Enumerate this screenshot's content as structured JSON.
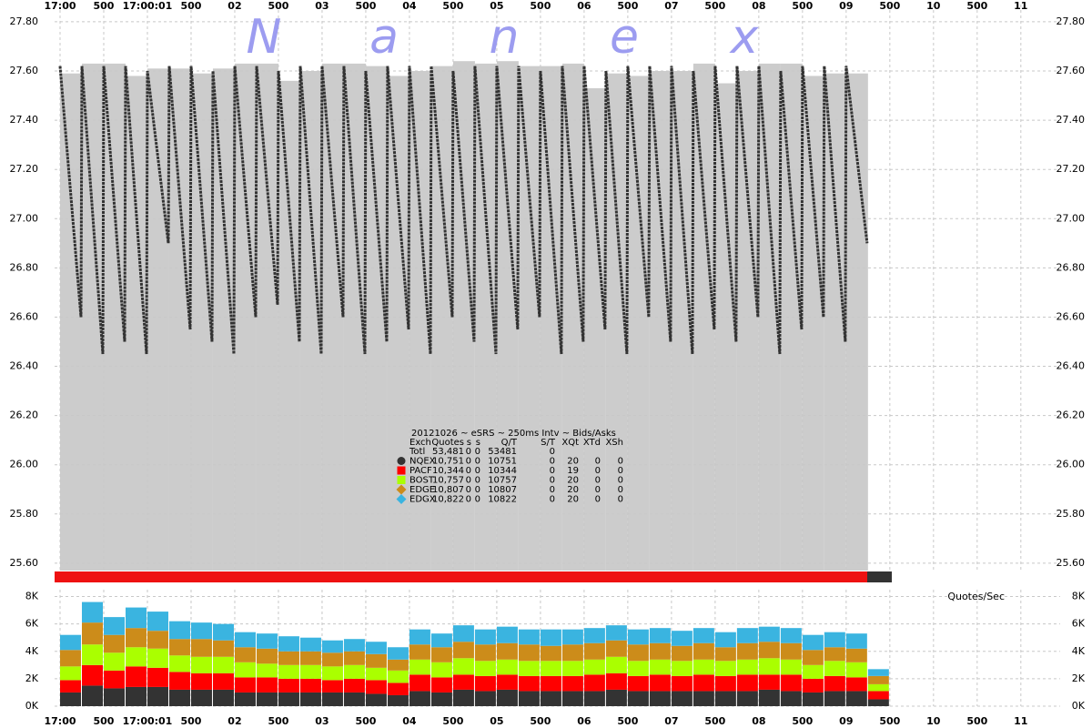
{
  "chart_data": [
    {
      "type": "line",
      "watermark": [
        "N",
        "a",
        "n",
        "e",
        "x"
      ],
      "xlim": [
        -0.0625,
        11.45
      ],
      "xticks": [
        {
          "value": 0,
          "label": "17:00"
        },
        {
          "value": 0.5,
          "label": "500"
        },
        {
          "value": 1,
          "label": "17:00:01"
        },
        {
          "value": 1.5,
          "label": "500"
        },
        {
          "value": 2,
          "label": "02"
        },
        {
          "value": 2.5,
          "label": "500"
        },
        {
          "value": 3,
          "label": "03"
        },
        {
          "value": 3.5,
          "label": "500"
        },
        {
          "value": 4,
          "label": "04"
        },
        {
          "value": 4.5,
          "label": "500"
        },
        {
          "value": 5,
          "label": "05"
        },
        {
          "value": 5.5,
          "label": "500"
        },
        {
          "value": 6,
          "label": "06"
        },
        {
          "value": 6.5,
          "label": "500"
        },
        {
          "value": 7,
          "label": "07"
        },
        {
          "value": 7.5,
          "label": "500"
        },
        {
          "value": 8,
          "label": "08"
        },
        {
          "value": 8.5,
          "label": "500"
        },
        {
          "value": 9,
          "label": "09"
        },
        {
          "value": 9.5,
          "label": "500"
        },
        {
          "value": 10,
          "label": "10"
        },
        {
          "value": 10.5,
          "label": "500"
        },
        {
          "value": 11,
          "label": "11"
        }
      ],
      "ylim": [
        25.57,
        27.87
      ],
      "yticks": [
        {
          "value": 25.6,
          "label": "25.60"
        },
        {
          "value": 25.8,
          "label": "25.80"
        },
        {
          "value": 26,
          "label": "26.00"
        },
        {
          "value": 26.2,
          "label": "26.20"
        },
        {
          "value": 26.4,
          "label": "26.40"
        },
        {
          "value": 26.6,
          "label": "26.60"
        },
        {
          "value": 26.8,
          "label": "26.80"
        },
        {
          "value": 27,
          "label": "27.00"
        },
        {
          "value": 27.2,
          "label": "27.20"
        },
        {
          "value": 27.4,
          "label": "27.40"
        },
        {
          "value": 27.6,
          "label": "27.60"
        },
        {
          "value": 27.8,
          "label": "27.80"
        }
      ],
      "grid": true,
      "background_bars": {
        "color": "#cccccc",
        "x": [
          0,
          0.25,
          0.5,
          0.75,
          1,
          1.25,
          1.5,
          1.75,
          2,
          2.25,
          2.5,
          2.75,
          3,
          3.25,
          3.5,
          3.75,
          4,
          4.25,
          4.5,
          4.75,
          5,
          5.25,
          5.5,
          5.75,
          6,
          6.25,
          6.5,
          6.75,
          7,
          7.25,
          7.5,
          7.75,
          8,
          8.25,
          8.5,
          8.75,
          9
        ],
        "values": [
          27.59,
          27.63,
          27.63,
          27.58,
          27.61,
          27.61,
          27.59,
          27.61,
          27.63,
          27.63,
          27.56,
          27.6,
          27.63,
          27.63,
          27.62,
          27.58,
          27.6,
          27.62,
          27.64,
          27.63,
          27.64,
          27.62,
          27.62,
          27.63,
          27.53,
          27.59,
          27.58,
          27.6,
          27.6,
          27.63,
          27.55,
          27.6,
          27.63,
          27.63,
          27.58,
          27.59,
          27.59
        ]
      },
      "x": [
        0,
        0.24,
        0.25,
        0.49,
        0.5,
        0.74,
        0.75,
        0.99,
        1,
        1.24,
        1.25,
        1.49,
        1.5,
        1.74,
        1.75,
        1.99,
        2,
        2.24,
        2.25,
        2.49,
        2.5,
        2.74,
        2.75,
        2.99,
        3,
        3.24,
        3.25,
        3.49,
        3.5,
        3.74,
        3.75,
        3.99,
        4,
        4.24,
        4.25,
        4.49,
        4.5,
        4.74,
        4.75,
        4.99,
        5,
        5.24,
        5.25,
        5.49,
        5.5,
        5.74,
        5.75,
        5.99,
        6,
        6.24,
        6.25,
        6.49,
        6.5,
        6.74,
        6.75,
        6.99,
        7,
        7.24,
        7.25,
        7.49,
        7.5,
        7.74,
        7.75,
        7.99,
        8,
        8.24,
        8.25,
        8.49,
        8.5,
        8.74,
        8.75,
        8.99,
        9,
        9.24
      ],
      "series": [
        {
          "color": "#333333",
          "values": [
            27.62,
            26.6,
            27.62,
            26.45,
            27.62,
            26.5,
            27.62,
            26.45,
            27.6,
            26.9,
            27.62,
            26.55,
            27.62,
            26.5,
            27.6,
            26.45,
            27.62,
            26.6,
            27.62,
            26.65,
            27.6,
            26.5,
            27.62,
            26.45,
            27.62,
            26.6,
            27.62,
            26.45,
            27.6,
            26.5,
            27.62,
            26.55,
            27.62,
            26.45,
            27.62,
            26.6,
            27.6,
            26.5,
            27.62,
            26.45,
            27.62,
            26.55,
            27.62,
            26.6,
            27.6,
            26.45,
            27.62,
            26.5,
            27.62,
            26.55,
            27.6,
            26.45,
            27.62,
            26.6,
            27.62,
            26.5,
            27.62,
            26.45,
            27.6,
            26.55,
            27.62,
            26.5,
            27.62,
            26.6,
            27.62,
            26.45,
            27.6,
            26.55,
            27.62,
            26.6,
            27.62,
            26.5,
            27.62,
            26.9
          ]
        }
      ],
      "legend_table": {
        "title": "20121026 ~ eSRS ~ 250ms Intv ~ Bids/Asks",
        "header": [
          "Exch",
          "Quotes",
          "s",
          "s",
          "Q/T",
          "S/T",
          "XQt",
          "XTd",
          "XSh"
        ],
        "rows": [
          [
            "Totl",
            "53,481",
            "0",
            "0",
            "53481",
            "0"
          ],
          [
            "NQEX",
            "10,751",
            "0",
            "0",
            "10751",
            "0",
            "20",
            "0",
            "0"
          ],
          [
            "PACF",
            "10,344",
            "0",
            "0",
            "10344",
            "0",
            "19",
            "0",
            "0"
          ],
          [
            "BOST",
            "10,757",
            "0",
            "0",
            "10757",
            "0",
            "20",
            "0",
            "0"
          ],
          [
            "EDGE",
            "10,807",
            "0",
            "0",
            "10807",
            "0",
            "20",
            "0",
            "0"
          ],
          [
            "EDGX",
            "10,822",
            "0",
            "0",
            "10822",
            "0",
            "20",
            "0",
            "0"
          ]
        ]
      }
    },
    {
      "type": "bar",
      "stacked": true,
      "ylabel": "Quotes/Sec",
      "xlim": [
        -0.0625,
        11.45
      ],
      "xticks": [
        {
          "value": 0,
          "label": "17:00"
        },
        {
          "value": 0.5,
          "label": "500"
        },
        {
          "value": 1,
          "label": "17:00:01"
        },
        {
          "value": 1.5,
          "label": "500"
        },
        {
          "value": 2,
          "label": "02"
        },
        {
          "value": 2.5,
          "label": "500"
        },
        {
          "value": 3,
          "label": "03"
        },
        {
          "value": 3.5,
          "label": "500"
        },
        {
          "value": 4,
          "label": "04"
        },
        {
          "value": 4.5,
          "label": "500"
        },
        {
          "value": 5,
          "label": "05"
        },
        {
          "value": 5.5,
          "label": "500"
        },
        {
          "value": 6,
          "label": "06"
        },
        {
          "value": 6.5,
          "label": "500"
        },
        {
          "value": 7,
          "label": "07"
        },
        {
          "value": 7.5,
          "label": "500"
        },
        {
          "value": 8,
          "label": "08"
        },
        {
          "value": 8.5,
          "label": "500"
        },
        {
          "value": 9,
          "label": "09"
        },
        {
          "value": 9.5,
          "label": "500"
        },
        {
          "value": 10,
          "label": "10"
        },
        {
          "value": 10.5,
          "label": "500"
        },
        {
          "value": 11,
          "label": "11"
        }
      ],
      "ylim": [
        0,
        8500
      ],
      "yticks": [
        {
          "value": 0,
          "label": "0K"
        },
        {
          "value": 2000,
          "label": "2K"
        },
        {
          "value": 4000,
          "label": "4K"
        },
        {
          "value": 6000,
          "label": "6K"
        },
        {
          "value": 8000,
          "label": "8K"
        }
      ],
      "grid": true,
      "bar_width": 0.25,
      "x": [
        0,
        0.25,
        0.5,
        0.75,
        1,
        1.25,
        1.5,
        1.75,
        2,
        2.25,
        2.5,
        2.75,
        3,
        3.25,
        3.5,
        3.75,
        4,
        4.25,
        4.5,
        4.75,
        5,
        5.25,
        5.5,
        5.75,
        6,
        6.25,
        6.5,
        6.75,
        7,
        7.25,
        7.5,
        7.75,
        8,
        8.25,
        8.5,
        8.75,
        9,
        9.25
      ],
      "series": [
        {
          "color": "#333333",
          "values": [
            1000,
            1500,
            1300,
            1400,
            1400,
            1200,
            1200,
            1200,
            1000,
            1000,
            1000,
            1000,
            1000,
            1000,
            900,
            800,
            1100,
            1000,
            1200,
            1100,
            1200,
            1100,
            1100,
            1100,
            1100,
            1200,
            1100,
            1100,
            1100,
            1100,
            1100,
            1100,
            1200,
            1100,
            1000,
            1100,
            1100,
            500
          ]
        },
        {
          "color": "#ff0000",
          "values": [
            900,
            1500,
            1300,
            1500,
            1400,
            1300,
            1200,
            1200,
            1100,
            1100,
            1000,
            1000,
            900,
            1000,
            1000,
            900,
            1200,
            1100,
            1100,
            1100,
            1100,
            1100,
            1100,
            1100,
            1200,
            1200,
            1100,
            1200,
            1100,
            1200,
            1100,
            1200,
            1100,
            1200,
            1000,
            1100,
            1000,
            600
          ]
        },
        {
          "color": "#aaff00",
          "values": [
            1000,
            1500,
            1300,
            1400,
            1400,
            1200,
            1200,
            1200,
            1100,
            1000,
            1000,
            1000,
            1000,
            1000,
            900,
            900,
            1100,
            1100,
            1200,
            1100,
            1100,
            1100,
            1100,
            1100,
            1100,
            1200,
            1100,
            1100,
            1100,
            1100,
            1100,
            1100,
            1200,
            1100,
            1000,
            1100,
            1100,
            500
          ]
        },
        {
          "color": "#cc8c1a",
          "values": [
            1200,
            1600,
            1300,
            1400,
            1300,
            1200,
            1300,
            1200,
            1100,
            1100,
            1000,
            1000,
            1000,
            1000,
            1000,
            800,
            1100,
            1100,
            1200,
            1200,
            1200,
            1200,
            1100,
            1200,
            1200,
            1200,
            1200,
            1200,
            1100,
            1200,
            1000,
            1200,
            1200,
            1200,
            1100,
            1000,
            1000,
            600
          ]
        },
        {
          "color": "#3ab4e0",
          "values": [
            1100,
            1500,
            1300,
            1500,
            1400,
            1300,
            1200,
            1200,
            1100,
            1100,
            1100,
            1000,
            900,
            900,
            900,
            900,
            1100,
            1000,
            1200,
            1100,
            1200,
            1100,
            1200,
            1100,
            1100,
            1100,
            1100,
            1100,
            1100,
            1100,
            1100,
            1100,
            1100,
            1100,
            1100,
            1100,
            1100,
            500
          ]
        }
      ]
    }
  ]
}
